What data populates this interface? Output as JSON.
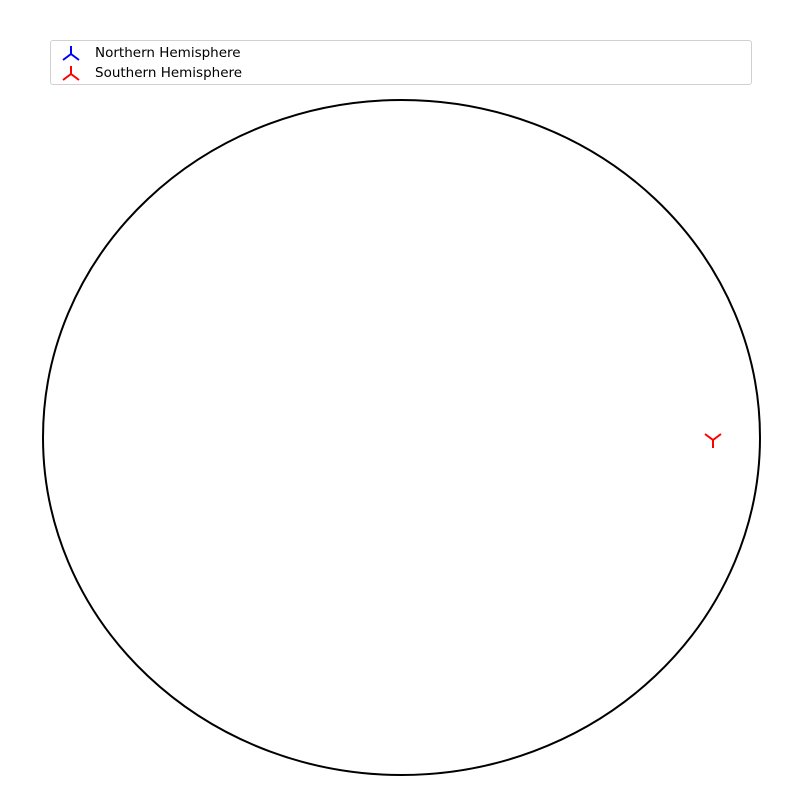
{
  "legend": {
    "placement": "top",
    "items": [
      {
        "label": "Northern Hemisphere",
        "color": "#0000ff",
        "marker": "tri-up"
      },
      {
        "label": "Southern Hemisphere",
        "color": "#ff0000",
        "marker": "tri-up"
      }
    ]
  },
  "diagram": {
    "outline": "circle",
    "outline_color": "#000000",
    "points": [
      {
        "series": "Southern Hemisphere",
        "marker": "tri-down",
        "color": "#ff0000",
        "position": "right edge, equator"
      }
    ]
  }
}
